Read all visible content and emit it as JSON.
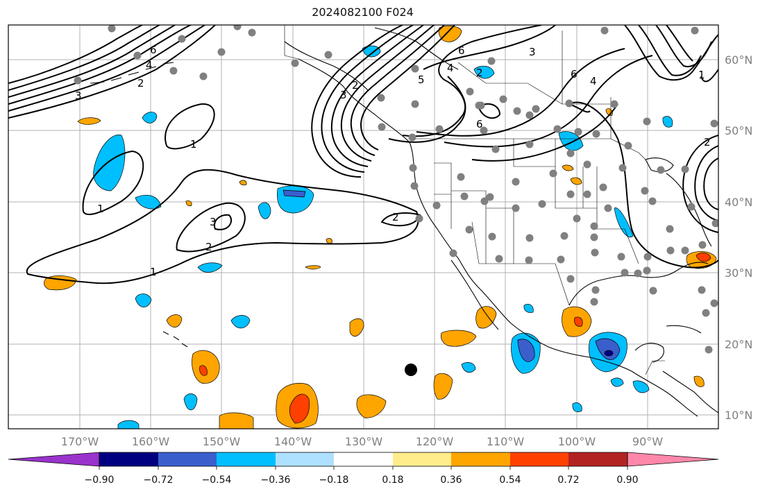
{
  "title": "2024082100 F024",
  "map": {
    "lon_labels": [
      "170°W",
      "160°W",
      "150°W",
      "140°W",
      "130°W",
      "120°W",
      "110°W",
      "100°W",
      "90°W"
    ],
    "lat_labels": [
      "60°N",
      "50°N",
      "40°N",
      "30°N",
      "20°N",
      "10°N"
    ],
    "lon_values": [
      -170,
      -160,
      -150,
      -140,
      -130,
      -120,
      -110,
      -100,
      -90
    ],
    "lat_values": [
      60,
      50,
      40,
      30,
      20,
      10
    ],
    "lon_range": [
      -180,
      -80
    ],
    "lat_range": [
      8,
      65
    ],
    "contour_labels": [
      "6",
      "4",
      "3",
      "2",
      "1",
      "2",
      "3",
      "2",
      "1",
      "2",
      "3",
      "5",
      "4",
      "6",
      "2",
      "3",
      "6",
      "4",
      "1",
      "2",
      "2"
    ]
  },
  "colorbar": {
    "ticks": [
      "−0.90",
      "−0.72",
      "−0.54",
      "−0.36",
      "−0.18",
      "0.18",
      "0.36",
      "0.54",
      "0.72",
      "0.90"
    ],
    "colors": [
      "#9933cc",
      "#000080",
      "#3a5fcd",
      "#00bfff",
      "#aee0ff",
      "#ffffff",
      "#ffec8b",
      "#ffa500",
      "#ff4000",
      "#b22222",
      "#ff88aa"
    ]
  }
}
